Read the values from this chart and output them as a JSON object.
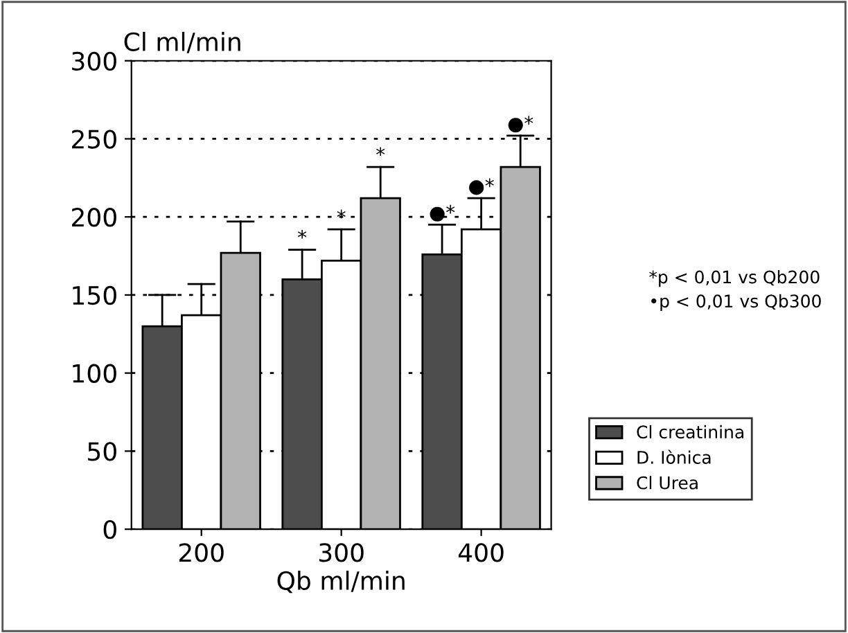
{
  "chart_data": {
    "type": "bar",
    "ylabel": "Cl ml/min",
    "xlabel": "Qb ml/min",
    "categories": [
      "200",
      "300",
      "400"
    ],
    "series": [
      {
        "name": "Cl creatinina",
        "color": "#4d4d4d",
        "values": [
          130,
          160,
          176
        ],
        "errors": [
          [
            130,
            150
          ],
          [
            160,
            179
          ],
          [
            176,
            195
          ]
        ]
      },
      {
        "name": "D. Iònica",
        "color": "#ffffff",
        "values": [
          137,
          172,
          192
        ],
        "errors": [
          [
            137,
            157
          ],
          [
            172,
            192
          ],
          [
            192,
            212
          ]
        ]
      },
      {
        "name": "Cl Urea",
        "color": "#b3b3b3",
        "values": [
          177,
          212,
          232
        ],
        "errors": [
          [
            177,
            197
          ],
          [
            212,
            232
          ],
          [
            232,
            252
          ]
        ]
      }
    ],
    "ylim": [
      0,
      300
    ],
    "yticks": [
      0,
      50,
      100,
      150,
      200,
      250,
      300
    ],
    "grid": "y",
    "legend": "right",
    "annotations": [
      "*",
      "*",
      "*",
      "●*",
      "●*",
      "●*",
      "*p < 0,01 vs Qb200",
      "•p < 0,01 vs Qb300"
    ]
  }
}
